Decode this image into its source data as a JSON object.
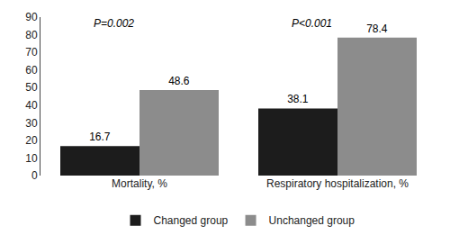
{
  "chart_data": {
    "type": "bar",
    "categories": [
      "Mortality, %",
      "Respiratory hospitalization, %"
    ],
    "series": [
      {
        "name": "Changed group",
        "color": "#1c1c1c",
        "values": [
          16.7,
          38.1
        ]
      },
      {
        "name": "Unchanged group",
        "color": "#8c8c8c",
        "values": [
          48.6,
          78.4
        ]
      }
    ],
    "ylim": [
      0,
      90
    ],
    "yticks": [
      0,
      10,
      20,
      30,
      40,
      50,
      60,
      70,
      80,
      90
    ],
    "data_labels": true,
    "grid": false,
    "legend": "bottom",
    "annotations": [
      {
        "text": "P=0.002",
        "x": "Mortality, %"
      },
      {
        "text": "P<0.001",
        "x": "Respiratory hospitalization, %"
      }
    ]
  }
}
